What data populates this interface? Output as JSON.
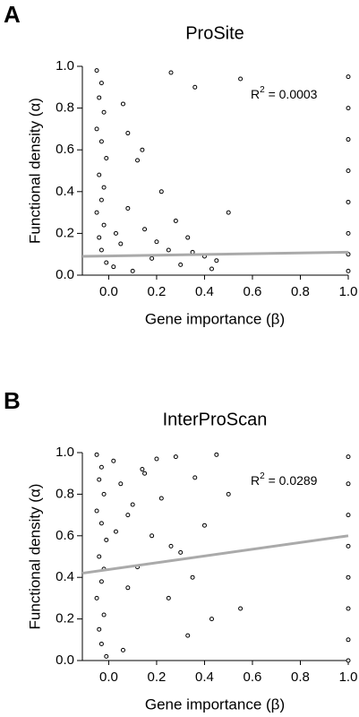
{
  "chart_data": [
    {
      "type": "scatter",
      "panel": "A",
      "title": "ProSite",
      "x_label": "Gene importance (β)",
      "y_label": "Functional density (α)",
      "annotation": {
        "base": "R",
        "sup": "2",
        "rest": " = 0.0003"
      },
      "xlim": [
        -0.11,
        1.0
      ],
      "ylim": [
        0,
        1
      ],
      "xticks": [
        {
          "value": 0,
          "label": "0.0"
        },
        {
          "value": 0.2,
          "label": "0.2"
        },
        {
          "value": 0.4,
          "label": "0.4"
        },
        {
          "value": 0.6,
          "label": "0.6"
        },
        {
          "value": 0.8,
          "label": "0.8"
        },
        {
          "value": 1,
          "label": "1.0"
        }
      ],
      "yticks": [
        {
          "value": 0,
          "label": "0.0"
        },
        {
          "value": 0.2,
          "label": "0.2"
        },
        {
          "value": 0.4,
          "label": "0.4"
        },
        {
          "value": 0.6,
          "label": "0.6"
        },
        {
          "value": 0.8,
          "label": "0.8"
        },
        {
          "value": 1,
          "label": "1.0"
        }
      ],
      "color": "#000000",
      "x": [
        -0.05,
        -0.03,
        -0.04,
        -0.02,
        -0.05,
        -0.03,
        -0.01,
        -0.04,
        -0.02,
        -0.03,
        -0.05,
        -0.02,
        -0.04,
        -0.03,
        -0.01,
        0.02,
        0.05,
        0.08,
        0.12,
        0.15,
        0.18,
        0.22,
        0.25,
        0.28,
        0.3,
        0.33,
        0.36,
        0.4,
        0.43,
        0.08,
        0.1,
        0.2,
        0.26,
        0.35,
        0.45,
        0.5,
        0.55,
        0.14,
        0.06,
        0.03,
        1.0,
        1.0,
        1.0,
        1.0,
        1.0,
        1.0,
        1.0,
        1.0
      ],
      "y": [
        0.98,
        0.92,
        0.85,
        0.78,
        0.7,
        0.64,
        0.56,
        0.48,
        0.42,
        0.36,
        0.3,
        0.24,
        0.18,
        0.12,
        0.06,
        0.04,
        0.15,
        0.32,
        0.55,
        0.22,
        0.08,
        0.4,
        0.12,
        0.26,
        0.05,
        0.18,
        0.9,
        0.09,
        0.03,
        0.68,
        0.02,
        0.16,
        0.97,
        0.11,
        0.07,
        0.3,
        0.94,
        0.6,
        0.82,
        0.2,
        0.95,
        0.8,
        0.65,
        0.5,
        0.35,
        0.2,
        0.1,
        0.02
      ],
      "fit": {
        "color": "#aaaaaa",
        "x": [
          -0.11,
          1.0
        ],
        "y": [
          0.09,
          0.11
        ]
      }
    },
    {
      "type": "scatter",
      "panel": "B",
      "title": "InterProScan",
      "x_label": "Gene importance (β)",
      "y_label": "Functional density (α)",
      "annotation": {
        "base": "R",
        "sup": "2",
        "rest": " = 0.0289"
      },
      "xlim": [
        -0.11,
        1.0
      ],
      "ylim": [
        0,
        1
      ],
      "xticks": [
        {
          "value": 0,
          "label": "0.0"
        },
        {
          "value": 0.2,
          "label": "0.2"
        },
        {
          "value": 0.4,
          "label": "0.4"
        },
        {
          "value": 0.6,
          "label": "0.6"
        },
        {
          "value": 0.8,
          "label": "0.8"
        },
        {
          "value": 1,
          "label": "1.0"
        }
      ],
      "yticks": [
        {
          "value": 0,
          "label": "0.0"
        },
        {
          "value": 0.2,
          "label": "0.2"
        },
        {
          "value": 0.4,
          "label": "0.4"
        },
        {
          "value": 0.6,
          "label": "0.6"
        },
        {
          "value": 0.8,
          "label": "0.8"
        },
        {
          "value": 1,
          "label": "1.0"
        }
      ],
      "color": "#000000",
      "x": [
        -0.05,
        -0.03,
        -0.04,
        -0.02,
        -0.05,
        -0.03,
        -0.01,
        -0.04,
        -0.02,
        -0.03,
        -0.05,
        -0.02,
        -0.04,
        -0.03,
        -0.01,
        0.02,
        0.05,
        0.08,
        0.12,
        0.15,
        0.18,
        0.22,
        0.25,
        0.28,
        0.3,
        0.33,
        0.36,
        0.4,
        0.43,
        0.08,
        0.1,
        0.2,
        0.26,
        0.35,
        0.45,
        0.5,
        0.55,
        0.14,
        0.06,
        0.03,
        1.0,
        1.0,
        1.0,
        1.0,
        1.0,
        1.0,
        1.0,
        1.0
      ],
      "y": [
        0.99,
        0.93,
        0.87,
        0.8,
        0.72,
        0.66,
        0.58,
        0.5,
        0.44,
        0.38,
        0.3,
        0.22,
        0.15,
        0.08,
        0.02,
        0.96,
        0.85,
        0.7,
        0.45,
        0.9,
        0.6,
        0.78,
        0.3,
        0.98,
        0.52,
        0.12,
        0.88,
        0.65,
        0.2,
        0.35,
        0.75,
        0.97,
        0.55,
        0.4,
        0.99,
        0.8,
        0.25,
        0.92,
        0.05,
        0.62,
        0.98,
        0.85,
        0.7,
        0.55,
        0.4,
        0.25,
        0.1,
        0.0
      ],
      "fit": {
        "color": "#aaaaaa",
        "x": [
          -0.11,
          1.0
        ],
        "y": [
          0.42,
          0.6
        ]
      }
    }
  ]
}
